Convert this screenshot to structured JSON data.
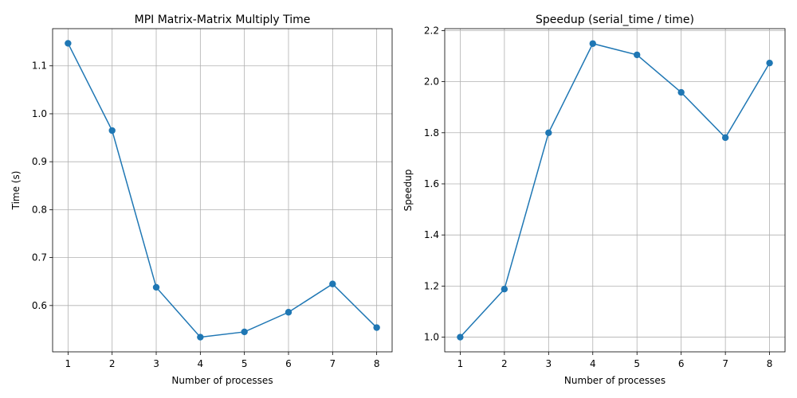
{
  "chart_data": [
    {
      "type": "line",
      "title": "MPI Matrix-Matrix Multiply Time",
      "xlabel": "Number of processes",
      "ylabel": "Time (s)",
      "x": [
        1,
        2,
        3,
        4,
        5,
        6,
        7,
        8
      ],
      "series": [
        {
          "values": [
            1.147,
            0.965,
            0.638,
            0.534,
            0.545,
            0.586,
            0.645,
            0.554
          ],
          "color": "#1f77b4",
          "marker": "circle"
        }
      ],
      "xticks": [
        "1",
        "2",
        "3",
        "4",
        "5",
        "6",
        "7",
        "8"
      ],
      "yticks": [
        0.6,
        0.7,
        0.8,
        0.9,
        1.0,
        1.1
      ],
      "ytick_labels": [
        "0.6",
        "0.7",
        "0.8",
        "0.9",
        "1.0",
        "1.1"
      ],
      "xlim": [
        0.65,
        8.35
      ],
      "ylim": [
        0.5034,
        1.1776
      ],
      "grid": true
    },
    {
      "type": "line",
      "title": "Speedup (serial_time / time)",
      "xlabel": "Number of processes",
      "ylabel": "Speedup",
      "x": [
        1,
        2,
        3,
        4,
        5,
        6,
        7,
        8
      ],
      "series": [
        {
          "values": [
            1.0,
            1.188,
            1.8,
            2.149,
            2.105,
            1.958,
            1.781,
            2.073
          ],
          "color": "#1f77b4",
          "marker": "circle"
        }
      ],
      "xticks": [
        "1",
        "2",
        "3",
        "4",
        "5",
        "6",
        "7",
        "8"
      ],
      "yticks": [
        1.0,
        1.2,
        1.4,
        1.6,
        1.8,
        2.0,
        2.2
      ],
      "ytick_labels": [
        "1.0",
        "1.2",
        "1.4",
        "1.6",
        "1.8",
        "2.0",
        "2.2"
      ],
      "xlim": [
        0.65,
        8.35
      ],
      "ylim": [
        0.9425,
        2.2075
      ],
      "grid": true
    }
  ]
}
